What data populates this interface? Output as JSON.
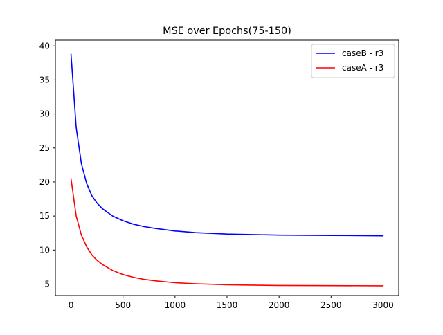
{
  "chart_data": {
    "type": "line",
    "title": "MSE over Epochs(75-150)",
    "xlabel": "",
    "ylabel": "",
    "xlim": [
      -150,
      3150
    ],
    "ylim": [
      3.32,
      40.84
    ],
    "xticks": [
      0,
      500,
      1000,
      1500,
      2000,
      2500,
      3000
    ],
    "yticks": [
      5,
      10,
      15,
      20,
      25,
      30,
      35,
      40
    ],
    "grid": false,
    "legend": {
      "position": "top-right"
    },
    "series": [
      {
        "name": "caseB - r3",
        "color": "#0000ff",
        "x": [
          0,
          50,
          100,
          150,
          200,
          250,
          300,
          400,
          500,
          600,
          700,
          800,
          1000,
          1200,
          1500,
          2000,
          2500,
          3000
        ],
        "y": [
          38.8,
          28.0,
          22.7,
          19.8,
          18.0,
          16.9,
          16.1,
          15.0,
          14.3,
          13.8,
          13.45,
          13.2,
          12.8,
          12.55,
          12.35,
          12.2,
          12.15,
          12.1
        ]
      },
      {
        "name": "caseA - r3",
        "color": "#ff0000",
        "x": [
          0,
          50,
          100,
          150,
          200,
          250,
          300,
          400,
          500,
          600,
          700,
          800,
          1000,
          1200,
          1500,
          2000,
          2500,
          3000
        ],
        "y": [
          20.5,
          15.0,
          12.2,
          10.5,
          9.3,
          8.5,
          7.9,
          7.0,
          6.4,
          6.0,
          5.7,
          5.5,
          5.2,
          5.05,
          4.9,
          4.8,
          4.78,
          4.75
        ]
      }
    ]
  }
}
